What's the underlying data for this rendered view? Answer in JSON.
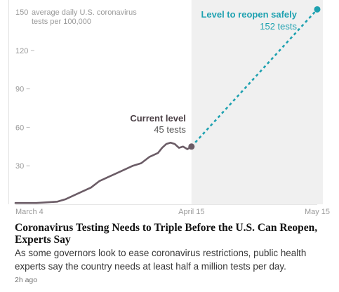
{
  "article": {
    "headline": "Coronavirus Testing Needs to Triple Before the U.S. Can Reopen, Experts Say",
    "summary": "As some governors look to ease coronavirus restrictions, public health experts say the country needs at least half a million tests per day.",
    "timestamp": "2h ago"
  },
  "chart_data": {
    "type": "line",
    "ylabel_line1": "average daily U.S. coronavirus",
    "ylabel_line2": "tests per 100,000",
    "y_ticks": [
      30,
      60,
      90,
      120,
      150
    ],
    "ylim": [
      0,
      150
    ],
    "x_ticks": [
      "March 4",
      "April 15",
      "May 15"
    ],
    "xlim_days": [
      0,
      72
    ],
    "x_tick_days": [
      0,
      42,
      72
    ],
    "series": [
      {
        "name": "",
        "x_days": [
          0,
          5,
          10,
          12,
          14,
          16,
          18,
          20,
          22,
          24,
          26,
          28,
          30,
          32,
          34,
          35,
          36,
          37,
          38,
          39,
          40,
          41,
          42
        ],
        "values": [
          1,
          1,
          2,
          4,
          7,
          10,
          13,
          18,
          21,
          24,
          27,
          30,
          32,
          37,
          40,
          44,
          47,
          48,
          47,
          44,
          45,
          43,
          45
        ]
      }
    ],
    "projection": {
      "from": [
        42,
        45
      ],
      "to": [
        72,
        152
      ]
    },
    "annotations": {
      "current_title": "Current level",
      "current_value": "45 tests",
      "target_title": "Level to reopen safely",
      "target_value": "152 tests"
    },
    "colors": {
      "line": "#6b5c66",
      "projection": "#1ea1b0",
      "shade": "#f0f0f0",
      "axis_text": "#999999"
    },
    "grid": false
  }
}
